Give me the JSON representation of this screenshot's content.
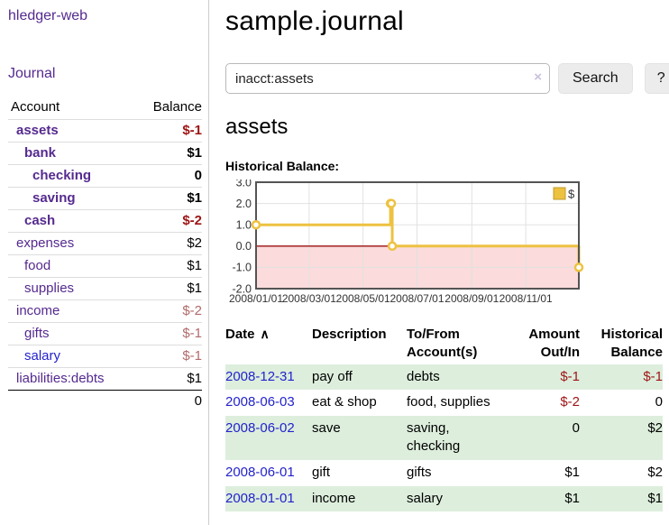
{
  "app": {
    "brand": "hledger-web"
  },
  "sidebar": {
    "journal_label": "Journal",
    "accounts_table": {
      "account_header": "Account",
      "balance_header": "Balance",
      "rows": [
        {
          "name": "assets",
          "balance": "$-1",
          "depth": 0,
          "bold": true,
          "balance_style": "neg-strong",
          "link_style": "purple"
        },
        {
          "name": "bank",
          "balance": "$1",
          "depth": 1,
          "bold": true,
          "balance_style": "pos",
          "link_style": "purple"
        },
        {
          "name": "checking",
          "balance": "0",
          "depth": 2,
          "bold": true,
          "balance_style": "pos",
          "link_style": "purple"
        },
        {
          "name": "saving",
          "balance": "$1",
          "depth": 2,
          "bold": true,
          "balance_style": "pos",
          "link_style": "purple"
        },
        {
          "name": "cash",
          "balance": "$-2",
          "depth": 1,
          "bold": true,
          "balance_style": "neg-strong",
          "link_style": "purple"
        },
        {
          "name": "expenses",
          "balance": "$2",
          "depth": 0,
          "bold": false,
          "balance_style": "pos",
          "link_style": "purple"
        },
        {
          "name": "food",
          "balance": "$1",
          "depth": 1,
          "bold": false,
          "balance_style": "pos",
          "link_style": "purple"
        },
        {
          "name": "supplies",
          "balance": "$1",
          "depth": 1,
          "bold": false,
          "balance_style": "pos",
          "link_style": "purple"
        },
        {
          "name": "income",
          "balance": "$-2",
          "depth": 0,
          "bold": false,
          "balance_style": "neg-muted",
          "link_style": "purple"
        },
        {
          "name": "gifts",
          "balance": "$-1",
          "depth": 1,
          "bold": false,
          "balance_style": "neg-muted",
          "link_style": "purple"
        },
        {
          "name": "salary",
          "balance": "$-1",
          "depth": 1,
          "bold": false,
          "balance_style": "neg-muted",
          "link_style": "blue"
        },
        {
          "name": "liabilities:debts",
          "balance": "$1",
          "depth": 0,
          "bold": false,
          "balance_style": "pos",
          "link_style": "purple"
        }
      ],
      "total": "0"
    }
  },
  "header": {
    "title": "sample.journal"
  },
  "search": {
    "value": "inacct:assets",
    "clear_icon": "×",
    "button_label": "Search",
    "help_label": "?"
  },
  "account_page": {
    "heading": "assets",
    "chart_label": "Historical Balance:"
  },
  "chart_data": {
    "type": "line",
    "step": true,
    "title": "Historical Balance",
    "series": [
      {
        "name": "$",
        "color": "#edc240",
        "points": [
          [
            "2008-01-01",
            1
          ],
          [
            "2008-06-01",
            2
          ],
          [
            "2008-06-02",
            2
          ],
          [
            "2008-06-03",
            0
          ],
          [
            "2008-12-31",
            -1
          ]
        ]
      }
    ],
    "x_domain": [
      "2008-01-01",
      "2008-12-31"
    ],
    "x_ticks": [
      {
        "date": "2008-01-01",
        "label": "2008/01/01"
      },
      {
        "date": "2008-03-01",
        "label": "2008/03/01"
      },
      {
        "date": "2008-05-01",
        "label": "2008/05/01"
      },
      {
        "date": "2008-07-01",
        "label": "2008/07/01"
      },
      {
        "date": "2008-09-01",
        "label": "2008/09/01"
      },
      {
        "date": "2008-11-01",
        "label": "2008/11/01"
      }
    ],
    "y_ticks": [
      3.0,
      2.0,
      1.0,
      0.0,
      -1.0,
      -2.0
    ],
    "ylim": [
      -2,
      3
    ],
    "grid": true,
    "legend_position": "top-right",
    "negative_region_color": "#fbdbdb",
    "zero_line_color": "#991111",
    "marker_fill": "#ffffff",
    "border_color": "#545454"
  },
  "register_table": {
    "headers": {
      "date": "Date",
      "sort_indicator": "∧",
      "description": "Description",
      "tofrom": "To/From Account(s)",
      "amount": "Amount Out/In",
      "balance": "Historical Balance"
    },
    "rows": [
      {
        "date": "2008-12-31",
        "description": "pay off",
        "accounts": "debts",
        "amount": "$-1",
        "balance": "$-1",
        "amount_neg": true,
        "balance_neg": true
      },
      {
        "date": "2008-06-03",
        "description": "eat & shop",
        "accounts": "food, supplies",
        "amount": "$-2",
        "balance": "0",
        "amount_neg": true,
        "balance_neg": false
      },
      {
        "date": "2008-06-02",
        "description": "save",
        "accounts": "saving, checking",
        "amount": "0",
        "balance": "$2",
        "amount_neg": false,
        "balance_neg": false
      },
      {
        "date": "2008-06-01",
        "description": "gift",
        "accounts": "gifts",
        "amount": "$1",
        "balance": "$2",
        "amount_neg": false,
        "balance_neg": false
      },
      {
        "date": "2008-01-01",
        "description": "income",
        "accounts": "salary",
        "amount": "$1",
        "balance": "$1",
        "amount_neg": false,
        "balance_neg": false
      }
    ]
  },
  "colors": {
    "purple": "#552a8f",
    "linkblue": "#2323cc",
    "negred": "#9e1414",
    "mutedred": "#b26a6a",
    "stripe": "#ddeedd"
  }
}
